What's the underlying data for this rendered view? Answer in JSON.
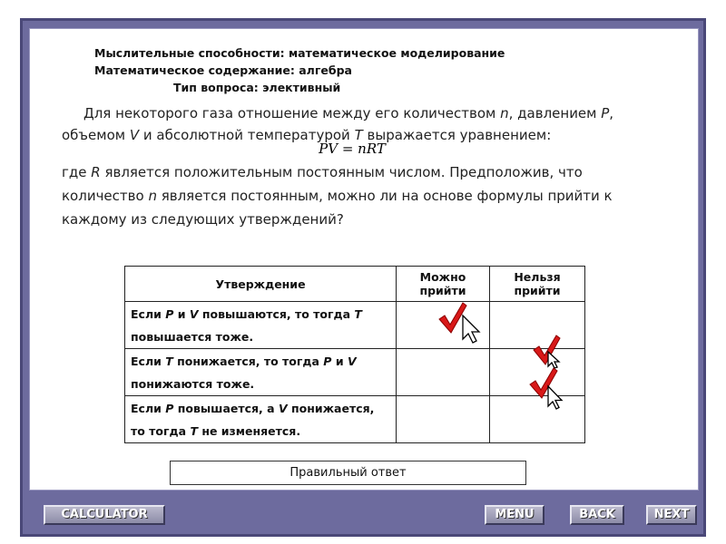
{
  "header": {
    "lines": [
      "Мыслительные способности: математическое моделирование",
      "Математическое содержание: алгебра",
      "Тип вопроса: элективный"
    ]
  },
  "question": {
    "paragraph1": [
      "Для некоторого газа отношение между его количеством ",
      {
        "text": "n",
        "italic": true
      },
      ", давлением ",
      {
        "text": "P",
        "italic": true
      },
      ", объемом ",
      {
        "text": "V",
        "italic": true
      },
      " и абсолютной температурой ",
      {
        "text": "T",
        "italic": true
      },
      " выражается уравнением:"
    ],
    "equation": "PV = nRT",
    "paragraph2": [
      "где ",
      {
        "text": "R",
        "italic": true
      },
      " является положительным постоянным числом. Предположив, что количество ",
      {
        "text": "n",
        "italic": true
      },
      " является постоянным, можно ли на основе формулы прийти к каждому из следующих утверждений?"
    ]
  },
  "table": {
    "header": [
      "Утверждение",
      "Можно прийти",
      "Нельзя прийти"
    ],
    "rows": [
      [
        "Если ",
        {
          "text": "P",
          "italic": true
        },
        " и ",
        {
          "text": "V",
          "italic": true
        },
        " повышаются, то тогда ",
        {
          "text": "T",
          "italic": true
        },
        " повышается тоже."
      ],
      [
        "Если ",
        {
          "text": "T",
          "italic": true
        },
        " понижается, то тогда ",
        {
          "text": "P",
          "italic": true
        },
        " и ",
        {
          "text": "V",
          "italic": true
        },
        " понижаются тоже."
      ],
      [
        "Если ",
        {
          "text": "P",
          "italic": true
        },
        " повышается, а ",
        {
          "text": "V",
          "italic": true
        },
        " понижается, то тогда ",
        {
          "text": "T",
          "italic": true
        },
        " не изменяется."
      ]
    ]
  },
  "answer_button": "Правильный ответ",
  "nav": {
    "calculator": "CALCULATOR",
    "menu": "MENU",
    "back": "BACK",
    "next": "NEXT"
  }
}
